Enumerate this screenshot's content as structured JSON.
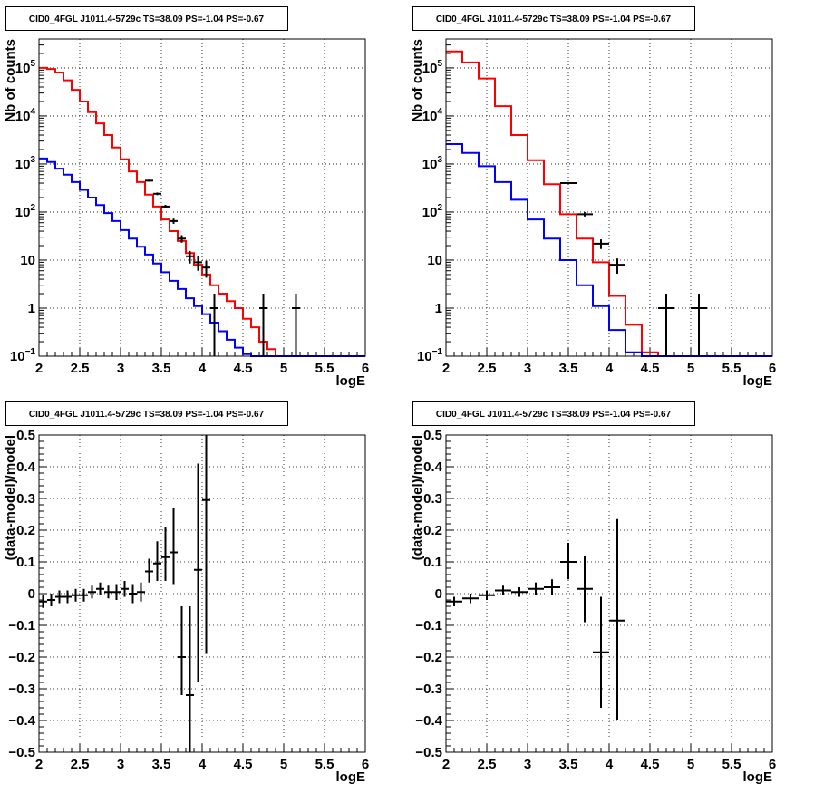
{
  "chart_data": [
    {
      "type": "line",
      "title": "CID0_4FGL J1011.4-5729c TS=38.09 PS=-1.04 PS=-0.67",
      "xlabel": "logE",
      "ylabel": "Nb of counts",
      "xlim": [
        2,
        6
      ],
      "ylim": [
        0.1,
        400000
      ],
      "log_y": true,
      "grid": true,
      "x_ticks": [
        "2",
        "2.5",
        "3",
        "3.5",
        "4",
        "4.5",
        "5",
        "5.5",
        "6"
      ],
      "y_ticks": [
        {
          "value": 0.1,
          "base": "10",
          "exp": "−1"
        },
        {
          "value": 1,
          "base": "1",
          "exp": ""
        },
        {
          "value": 10,
          "base": "10",
          "exp": ""
        },
        {
          "value": 100,
          "base": "10",
          "exp": "2"
        },
        {
          "value": 1000,
          "base": "10",
          "exp": "3"
        },
        {
          "value": 10000,
          "base": "10",
          "exp": "4"
        },
        {
          "value": 100000,
          "base": "10",
          "exp": "5"
        }
      ],
      "bin_edges": [
        2.0,
        2.1,
        2.2,
        2.3,
        2.4,
        2.5,
        2.6,
        2.7,
        2.8,
        2.9,
        3.0,
        3.1,
        3.2,
        3.3,
        3.4,
        3.5,
        3.6,
        3.7,
        3.8,
        3.9,
        4.0,
        4.1,
        4.2,
        4.3,
        4.4,
        4.5,
        4.6,
        4.7,
        4.8,
        4.9,
        5.0,
        5.1,
        5.2,
        5.3,
        5.4,
        5.5,
        5.6,
        5.7,
        5.8,
        5.9,
        6.0
      ],
      "series": [
        {
          "color": "#ff0000",
          "values": [
            100000,
            95000,
            80000,
            55000,
            35000,
            20000,
            12000,
            7000,
            4000,
            2200,
            1250,
            700,
            420,
            230,
            130,
            70,
            40,
            25,
            14,
            8,
            5,
            3,
            2,
            1.4,
            1,
            0.6,
            0.4,
            0.2,
            0.14,
            0.1,
            0.1,
            0.1,
            0.1,
            0.1,
            0.1,
            0.1,
            0.1,
            0.1,
            0.1,
            0.1
          ]
        },
        {
          "color": "#0000ff",
          "values": [
            1300,
            1100,
            800,
            600,
            420,
            290,
            200,
            140,
            95,
            65,
            42,
            28,
            19,
            13,
            8.5,
            5.6,
            3.7,
            2.5,
            1.6,
            1.1,
            0.75,
            0.5,
            0.33,
            0.22,
            0.15,
            0.11,
            0.1,
            0.1,
            0.1,
            0.1,
            0.1,
            0.1,
            0.1,
            0.1,
            0.1,
            0.1,
            0.1,
            0.1,
            0.1,
            0.1
          ]
        }
      ],
      "data_points": [
        {
          "x": 3.35,
          "y": 450,
          "xerr": 0.05,
          "ylo": 430,
          "yhi": 470
        },
        {
          "x": 3.45,
          "y": 240,
          "xerr": 0.05,
          "ylo": 225,
          "yhi": 255
        },
        {
          "x": 3.55,
          "y": 130,
          "xerr": 0.05,
          "ylo": 119,
          "yhi": 141
        },
        {
          "x": 3.65,
          "y": 65,
          "xerr": 0.05,
          "ylo": 57,
          "yhi": 73
        },
        {
          "x": 3.75,
          "y": 28,
          "xerr": 0.05,
          "ylo": 23,
          "yhi": 33
        },
        {
          "x": 3.85,
          "y": 12,
          "xerr": 0.05,
          "ylo": 8.5,
          "yhi": 15.5
        },
        {
          "x": 3.95,
          "y": 9,
          "xerr": 0.05,
          "ylo": 6,
          "yhi": 12
        },
        {
          "x": 4.05,
          "y": 7,
          "xerr": 0.05,
          "ylo": 4.3,
          "yhi": 9.7
        },
        {
          "x": 4.15,
          "y": 1,
          "xerr": 0.05,
          "ylo": 0.1,
          "yhi": 2
        },
        {
          "x": 4.75,
          "y": 1,
          "xerr": 0.05,
          "ylo": 0.1,
          "yhi": 2
        },
        {
          "x": 5.15,
          "y": 1,
          "xerr": 0.05,
          "ylo": 0.1,
          "yhi": 2
        }
      ]
    },
    {
      "type": "line",
      "title": "CID0_4FGL J1011.4-5729c TS=38.09 PS=-1.04 PS=-0.67",
      "xlabel": "logE",
      "ylabel": "Nb of counts",
      "xlim": [
        2,
        6
      ],
      "ylim": [
        0.1,
        400000
      ],
      "log_y": true,
      "grid": true,
      "x_ticks": [
        "2",
        "2.5",
        "3",
        "3.5",
        "4",
        "4.5",
        "5",
        "5.5",
        "6"
      ],
      "y_ticks": [
        {
          "value": 0.1,
          "base": "10",
          "exp": "−1"
        },
        {
          "value": 1,
          "base": "1",
          "exp": ""
        },
        {
          "value": 10,
          "base": "10",
          "exp": ""
        },
        {
          "value": 100,
          "base": "10",
          "exp": "2"
        },
        {
          "value": 1000,
          "base": "10",
          "exp": "3"
        },
        {
          "value": 10000,
          "base": "10",
          "exp": "4"
        },
        {
          "value": 100000,
          "base": "10",
          "exp": "5"
        }
      ],
      "bin_edges": [
        2.0,
        2.2,
        2.4,
        2.6,
        2.8,
        3.0,
        3.2,
        3.4,
        3.6,
        3.8,
        4.0,
        4.2,
        4.4,
        4.6,
        4.8,
        5.0,
        5.2,
        5.4,
        5.6,
        5.8,
        6.0
      ],
      "series": [
        {
          "color": "#ff0000",
          "values": [
            220000,
            130000,
            60000,
            16000,
            4000,
            1200,
            380,
            90,
            28,
            9,
            1.8,
            0.45,
            0.12,
            0.1,
            0.1,
            0.1,
            0.1,
            0.1,
            0.1,
            0.1
          ]
        },
        {
          "color": "#0000ff",
          "values": [
            2600,
            1700,
            900,
            420,
            180,
            70,
            28,
            10,
            3,
            1.1,
            0.35,
            0.12,
            0.1,
            0.1,
            0.1,
            0.1,
            0.1,
            0.1,
            0.1,
            0.1
          ]
        }
      ],
      "data_points": [
        {
          "x": 3.5,
          "y": 400,
          "xerr": 0.1,
          "ylo": 380,
          "yhi": 420
        },
        {
          "x": 3.7,
          "y": 90,
          "xerr": 0.1,
          "ylo": 81,
          "yhi": 99
        },
        {
          "x": 3.9,
          "y": 22,
          "xerr": 0.1,
          "ylo": 17,
          "yhi": 27
        },
        {
          "x": 4.1,
          "y": 8,
          "xerr": 0.1,
          "ylo": 5.2,
          "yhi": 10.8
        },
        {
          "x": 4.7,
          "y": 1,
          "xerr": 0.1,
          "ylo": 0.1,
          "yhi": 2
        },
        {
          "x": 5.1,
          "y": 1,
          "xerr": 0.1,
          "ylo": 0.1,
          "yhi": 2
        }
      ]
    },
    {
      "type": "scatter",
      "title": "CID0_4FGL J1011.4-5729c TS=38.09 PS=-1.04 PS=-0.67",
      "xlabel": "logE",
      "ylabel": "(data-model)/model",
      "xlim": [
        2,
        6
      ],
      "ylim": [
        -0.5,
        0.5
      ],
      "log_y": false,
      "grid": true,
      "x_ticks": [
        "2",
        "2.5",
        "3",
        "3.5",
        "4",
        "4.5",
        "5",
        "5.5",
        "6"
      ],
      "y_ticks": [
        {
          "value": -0.5,
          "label": "−0.5"
        },
        {
          "value": -0.4,
          "label": "−0.4"
        },
        {
          "value": -0.3,
          "label": "−0.3"
        },
        {
          "value": -0.2,
          "label": "−0.2"
        },
        {
          "value": -0.1,
          "label": "−0.1"
        },
        {
          "value": 0,
          "label": "0"
        },
        {
          "value": 0.1,
          "label": "0.1"
        },
        {
          "value": 0.2,
          "label": "0.2"
        },
        {
          "value": 0.3,
          "label": "0.3"
        },
        {
          "value": 0.4,
          "label": "0.4"
        },
        {
          "value": 0.5,
          "label": "0.5"
        }
      ],
      "data_points": [
        {
          "x": 2.05,
          "y": -0.025,
          "xerr": 0.05,
          "ylo": -0.045,
          "yhi": -0.005
        },
        {
          "x": 2.15,
          "y": -0.02,
          "xerr": 0.05,
          "ylo": -0.04,
          "yhi": 0.0
        },
        {
          "x": 2.25,
          "y": -0.01,
          "xerr": 0.05,
          "ylo": -0.03,
          "yhi": 0.01
        },
        {
          "x": 2.35,
          "y": -0.01,
          "xerr": 0.05,
          "ylo": -0.03,
          "yhi": 0.01
        },
        {
          "x": 2.45,
          "y": -0.005,
          "xerr": 0.05,
          "ylo": -0.025,
          "yhi": 0.015
        },
        {
          "x": 2.55,
          "y": -0.005,
          "xerr": 0.05,
          "ylo": -0.025,
          "yhi": 0.015
        },
        {
          "x": 2.65,
          "y": 0.005,
          "xerr": 0.05,
          "ylo": -0.015,
          "yhi": 0.025
        },
        {
          "x": 2.75,
          "y": 0.015,
          "xerr": 0.05,
          "ylo": -0.005,
          "yhi": 0.035
        },
        {
          "x": 2.85,
          "y": 0.005,
          "xerr": 0.05,
          "ylo": -0.015,
          "yhi": 0.025
        },
        {
          "x": 2.95,
          "y": 0.005,
          "xerr": 0.05,
          "ylo": -0.02,
          "yhi": 0.03
        },
        {
          "x": 3.05,
          "y": 0.015,
          "xerr": 0.05,
          "ylo": -0.01,
          "yhi": 0.04
        },
        {
          "x": 3.15,
          "y": 0.0,
          "xerr": 0.05,
          "ylo": -0.03,
          "yhi": 0.03
        },
        {
          "x": 3.25,
          "y": 0.005,
          "xerr": 0.05,
          "ylo": -0.025,
          "yhi": 0.035
        },
        {
          "x": 3.35,
          "y": 0.07,
          "xerr": 0.05,
          "ylo": 0.035,
          "yhi": 0.11
        },
        {
          "x": 3.45,
          "y": 0.095,
          "xerr": 0.05,
          "ylo": 0.04,
          "yhi": 0.165
        },
        {
          "x": 3.55,
          "y": 0.115,
          "xerr": 0.05,
          "ylo": 0.04,
          "yhi": 0.21
        },
        {
          "x": 3.65,
          "y": 0.13,
          "xerr": 0.05,
          "ylo": 0.03,
          "yhi": 0.27
        },
        {
          "x": 3.75,
          "y": -0.2,
          "xerr": 0.05,
          "ylo": -0.32,
          "yhi": -0.04
        },
        {
          "x": 3.85,
          "y": -0.32,
          "xerr": 0.05,
          "ylo": -0.5,
          "yhi": -0.04
        },
        {
          "x": 3.95,
          "y": 0.075,
          "xerr": 0.05,
          "ylo": -0.28,
          "yhi": 0.41
        },
        {
          "x": 4.05,
          "y": 0.295,
          "xerr": 0.05,
          "ylo": -0.19,
          "yhi": 0.5
        }
      ]
    },
    {
      "type": "scatter",
      "title": "CID0_4FGL J1011.4-5729c TS=38.09 PS=-1.04 PS=-0.67",
      "xlabel": "logE",
      "ylabel": "(data-model)/model",
      "xlim": [
        2,
        6
      ],
      "ylim": [
        -0.5,
        0.5
      ],
      "log_y": false,
      "grid": true,
      "x_ticks": [
        "2",
        "2.5",
        "3",
        "3.5",
        "4",
        "4.5",
        "5",
        "5.5",
        "6"
      ],
      "y_ticks": [
        {
          "value": -0.5,
          "label": "−0.5"
        },
        {
          "value": -0.4,
          "label": "−0.4"
        },
        {
          "value": -0.3,
          "label": "−0.3"
        },
        {
          "value": -0.2,
          "label": "−0.2"
        },
        {
          "value": -0.1,
          "label": "−0.1"
        },
        {
          "value": 0,
          "label": "0"
        },
        {
          "value": 0.1,
          "label": "0.1"
        },
        {
          "value": 0.2,
          "label": "0.2"
        },
        {
          "value": 0.3,
          "label": "0.3"
        },
        {
          "value": 0.4,
          "label": "0.4"
        },
        {
          "value": 0.5,
          "label": "0.5"
        }
      ],
      "data_points": [
        {
          "x": 2.1,
          "y": -0.025,
          "xerr": 0.1,
          "ylo": -0.04,
          "yhi": -0.01
        },
        {
          "x": 2.3,
          "y": -0.015,
          "xerr": 0.1,
          "ylo": -0.03,
          "yhi": 0.0
        },
        {
          "x": 2.5,
          "y": -0.005,
          "xerr": 0.1,
          "ylo": -0.02,
          "yhi": 0.01
        },
        {
          "x": 2.7,
          "y": 0.01,
          "xerr": 0.1,
          "ylo": -0.005,
          "yhi": 0.025
        },
        {
          "x": 2.9,
          "y": 0.005,
          "xerr": 0.1,
          "ylo": -0.01,
          "yhi": 0.02
        },
        {
          "x": 3.1,
          "y": 0.015,
          "xerr": 0.1,
          "ylo": -0.005,
          "yhi": 0.035
        },
        {
          "x": 3.3,
          "y": 0.02,
          "xerr": 0.1,
          "ylo": -0.005,
          "yhi": 0.045
        },
        {
          "x": 3.5,
          "y": 0.1,
          "xerr": 0.1,
          "ylo": 0.045,
          "yhi": 0.16
        },
        {
          "x": 3.7,
          "y": 0.015,
          "xerr": 0.1,
          "ylo": -0.09,
          "yhi": 0.12
        },
        {
          "x": 3.9,
          "y": -0.185,
          "xerr": 0.1,
          "ylo": -0.36,
          "yhi": -0.01
        },
        {
          "x": 4.1,
          "y": -0.085,
          "xerr": 0.1,
          "ylo": -0.4,
          "yhi": 0.235
        }
      ]
    }
  ]
}
